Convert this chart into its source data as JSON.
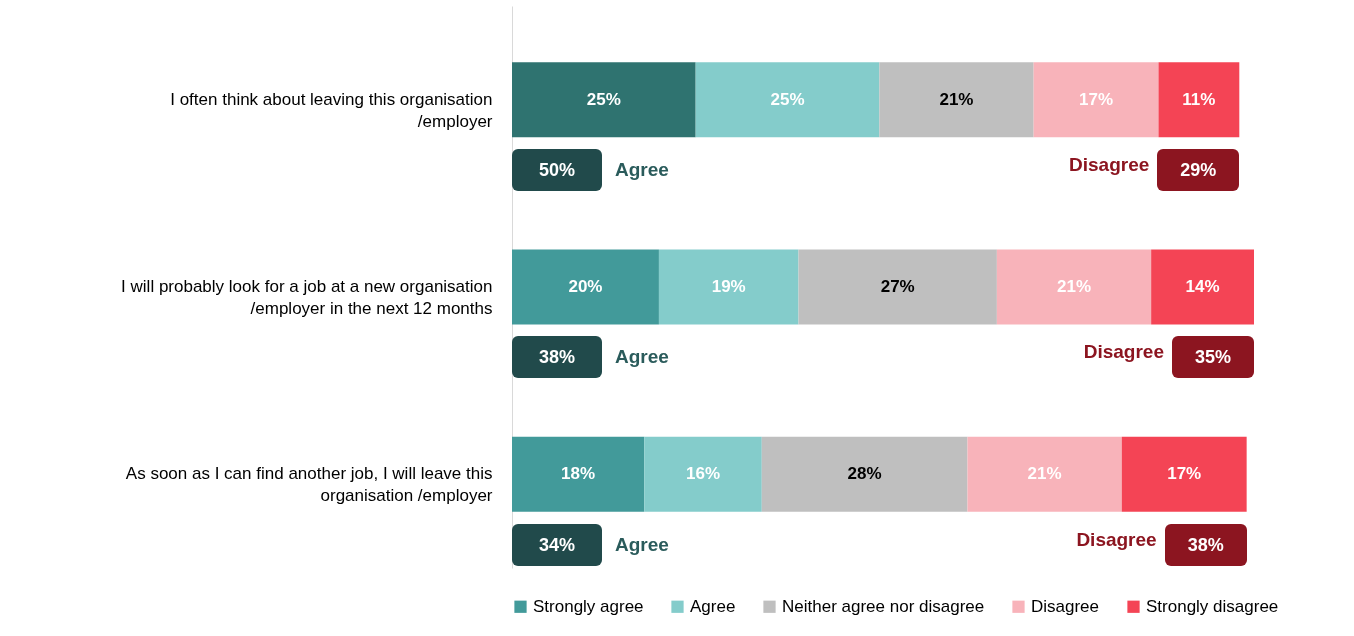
{
  "chart_data": {
    "type": "bar",
    "orientation": "horizontal",
    "stacked": true,
    "legend": "bottom",
    "grid": false,
    "categories": [
      "I often think about leaving this organisation /employer",
      "I will probably look for a job at a new organisation /employer in the next 12 months",
      "As soon as I can find another job, I will leave this organisation /employer"
    ],
    "series": [
      {
        "name": "Strongly agree",
        "color": "#429a9a",
        "colors": [
          "#2f7370",
          "#429a9a",
          "#429a9a"
        ],
        "values": [
          25,
          20,
          18
        ],
        "value_labels": [
          "25%",
          "20%",
          "18%"
        ]
      },
      {
        "name": "Agree",
        "color": "#84cccb",
        "values": [
          25,
          19,
          16
        ],
        "value_labels": [
          "25%",
          "19%",
          "16%"
        ]
      },
      {
        "name": "Neither agree nor disagree",
        "color": "#bfbfbf",
        "values": [
          21,
          27,
          28
        ],
        "value_labels": [
          "21%",
          "27%",
          "28%"
        ]
      },
      {
        "name": "Disagree",
        "color": "#f8b3ba",
        "values": [
          17,
          21,
          21
        ],
        "value_labels": [
          "17%",
          "21%",
          "21%"
        ]
      },
      {
        "name": "Strongly disagree",
        "color": "#f44455",
        "values": [
          11,
          14,
          17
        ],
        "value_labels": [
          "11%",
          "14%",
          "17%"
        ]
      }
    ],
    "annotations": [
      "50%",
      "Agree",
      "Disagree",
      "29%",
      "38%",
      "Agree",
      "Disagree",
      "35%",
      "34%",
      "Agree",
      "Disagree",
      "38%"
    ]
  }
}
